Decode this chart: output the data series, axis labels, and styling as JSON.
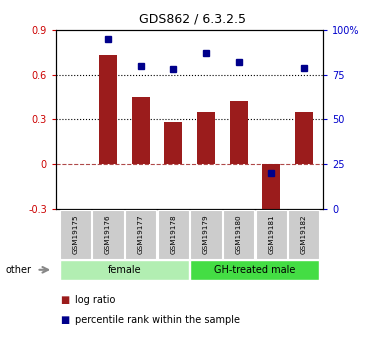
{
  "title": "GDS862 / 6.3.2.5",
  "samples": [
    "GSM19175",
    "GSM19176",
    "GSM19177",
    "GSM19178",
    "GSM19179",
    "GSM19180",
    "GSM19181",
    "GSM19182"
  ],
  "log_ratio": [
    0.0,
    0.73,
    0.45,
    0.28,
    0.35,
    0.42,
    -0.37,
    0.35
  ],
  "percentile_rank": [
    null,
    95,
    80,
    78,
    87,
    82,
    20,
    79
  ],
  "bar_color": "#9B1C1C",
  "dot_color": "#00008B",
  "ylim_left": [
    -0.3,
    0.9
  ],
  "ylim_right": [
    0,
    100
  ],
  "yticks_left": [
    -0.3,
    0.0,
    0.3,
    0.6,
    0.9
  ],
  "yticks_right": [
    0,
    25,
    50,
    75,
    100
  ],
  "ytick_labels_left": [
    "-0.3",
    "0",
    "0.3",
    "0.6",
    "0.9"
  ],
  "ytick_labels_right": [
    "0",
    "25",
    "50",
    "75",
    "100%"
  ],
  "hlines_dotted": [
    0.3,
    0.6
  ],
  "hline_dashed_val": 0.0,
  "groups": [
    {
      "label": "female",
      "start": 0,
      "end": 4,
      "color": "#B2EEB2"
    },
    {
      "label": "GH-treated male",
      "start": 4,
      "end": 8,
      "color": "#44DD44"
    }
  ],
  "other_label": "other",
  "legend_items": [
    {
      "label": "log ratio",
      "color": "#9B1C1C"
    },
    {
      "label": "percentile rank within the sample",
      "color": "#00008B"
    }
  ],
  "bg_color": "#FFFFFF",
  "tick_label_color_left": "#CC0000",
  "tick_label_color_right": "#0000CC",
  "bar_width": 0.55,
  "sample_box_color": "#CCCCCC",
  "border_color": "#000000"
}
